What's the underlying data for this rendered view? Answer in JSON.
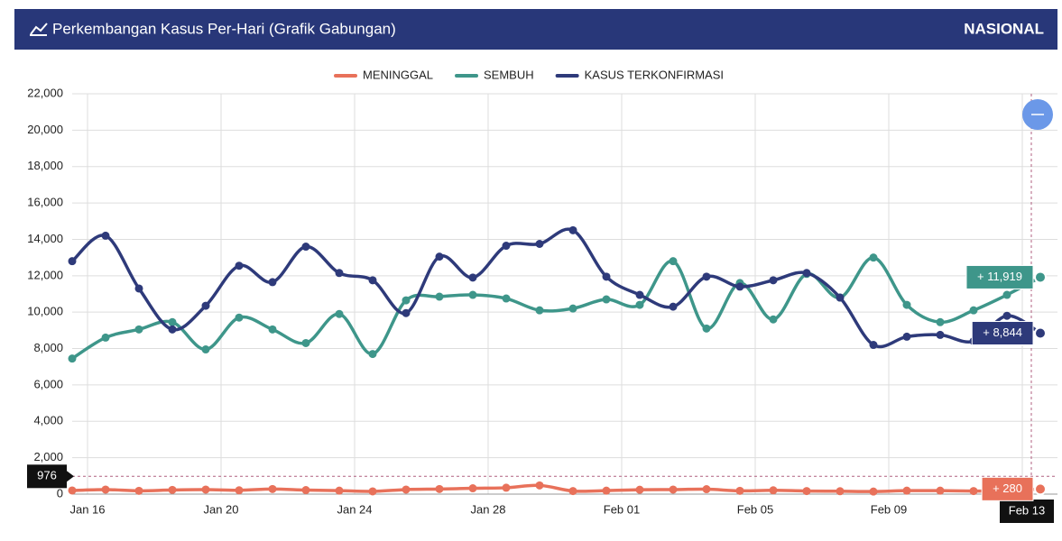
{
  "header": {
    "title": "Perkembangan Kasus Per-Hari (Grafik Gabungan)",
    "region": "NASIONAL"
  },
  "chart_data": {
    "type": "line",
    "categories": [
      null,
      "Jan 16",
      null,
      null,
      null,
      "Jan 20",
      null,
      null,
      null,
      "Jan 24",
      null,
      null,
      null,
      "Jan 28",
      null,
      null,
      null,
      "Feb 01",
      null,
      null,
      null,
      "Feb 05",
      null,
      null,
      null,
      "Feb 09",
      null,
      null,
      null,
      "Feb 13"
    ],
    "series": [
      {
        "name": "MENINGGAL",
        "color": "#e8715a",
        "values": [
          200,
          250,
          180,
          230,
          250,
          210,
          280,
          220,
          190,
          150,
          250,
          280,
          320,
          350,
          480,
          170,
          190,
          240,
          250,
          270,
          180,
          210,
          170,
          160,
          140,
          190,
          190,
          170,
          180,
          280
        ],
        "value_labels": [
          null,
          null,
          null,
          null,
          null,
          null,
          null,
          null,
          null,
          null,
          null,
          null,
          null,
          null,
          null,
          null,
          null,
          null,
          null,
          null,
          null,
          null,
          null,
          null,
          null,
          null,
          null,
          null,
          null,
          "+ 280"
        ]
      },
      {
        "name": "SEMBUH",
        "color": "#3e968a",
        "values": [
          7450,
          8600,
          9050,
          9450,
          7950,
          9700,
          9050,
          8300,
          9900,
          7700,
          10650,
          10850,
          10950,
          10750,
          10100,
          10200,
          10700,
          10400,
          12800,
          9100,
          11600,
          9600,
          12100,
          10800,
          13000,
          10400,
          9450,
          10100,
          10950,
          11919
        ],
        "value_labels": [
          null,
          null,
          null,
          null,
          null,
          null,
          null,
          null,
          null,
          null,
          null,
          null,
          null,
          null,
          null,
          null,
          null,
          null,
          null,
          null,
          null,
          null,
          null,
          null,
          null,
          null,
          null,
          null,
          null,
          "+ 11,919"
        ]
      },
      {
        "name": "KASUS TERKONFIRMASI",
        "color": "#2e3a7a",
        "values": [
          12800,
          14200,
          11300,
          9050,
          10350,
          12550,
          11650,
          13600,
          12150,
          11750,
          9950,
          13050,
          11900,
          13650,
          13750,
          14500,
          11950,
          10950,
          10300,
          11950,
          11400,
          11750,
          12150,
          10800,
          8200,
          8650,
          8750,
          8400,
          9800,
          8844
        ],
        "value_labels": [
          null,
          null,
          null,
          null,
          null,
          null,
          null,
          null,
          null,
          null,
          null,
          null,
          null,
          null,
          null,
          null,
          null,
          null,
          null,
          null,
          null,
          null,
          null,
          null,
          null,
          null,
          null,
          null,
          null,
          "+ 8,844"
        ]
      }
    ],
    "ylim": [
      0,
      22000
    ],
    "yticks": [
      0,
      {
        "value": 2000,
        "label": "2,000"
      },
      {
        "value": 4000,
        "label": "4,000"
      },
      {
        "value": 6000,
        "label": "6,000"
      },
      {
        "value": 8000,
        "label": "8,000"
      },
      {
        "value": 10000,
        "label": "10,000"
      },
      {
        "value": 12000,
        "label": "12,000"
      },
      {
        "value": 14000,
        "label": "14,000"
      },
      {
        "value": 16000,
        "label": "16,000"
      },
      {
        "value": 18000,
        "label": "18,000"
      },
      {
        "value": 20000,
        "label": "20,000"
      },
      {
        "value": 22000,
        "label": "22,000"
      }
    ],
    "crosshair_y": 976,
    "grid": true,
    "legend": "top"
  }
}
